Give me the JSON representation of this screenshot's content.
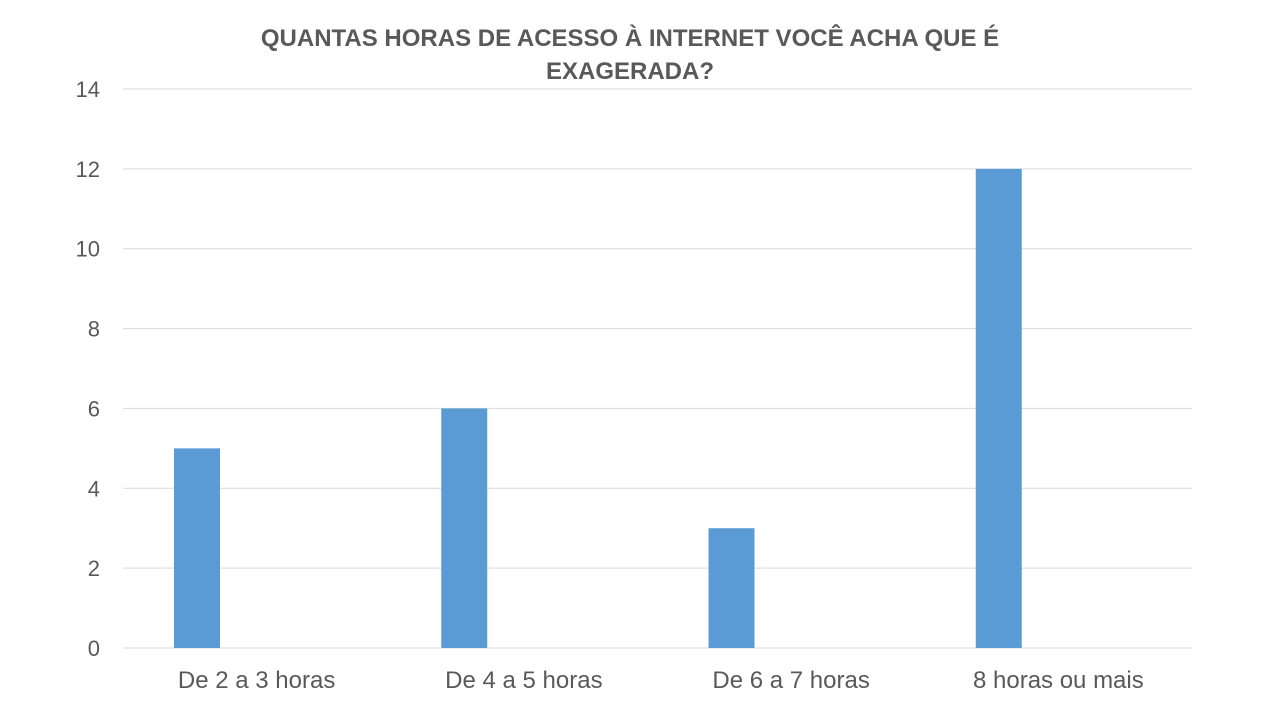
{
  "chart_data": {
    "type": "bar",
    "title": "QUANTAS HORAS DE ACESSO À INTERNET VOCÊ ACHA QUE É\nEXAGERADA?",
    "categories": [
      "De 2 a 3 horas",
      "De 4 a 5 horas",
      "De 6 a 7 horas",
      "8 horas ou mais"
    ],
    "series": [
      {
        "values": [
          5,
          6,
          3,
          12
        ]
      }
    ],
    "xlabel": "",
    "ylabel": "",
    "ylim": [
      0,
      14
    ],
    "yticks": [
      0,
      2,
      4,
      6,
      8,
      10,
      12,
      14
    ],
    "grid": true,
    "legend": "none",
    "colors": {
      "bar": "#5B9BD5",
      "grid": "#D9D9D9",
      "text": "#595959"
    }
  }
}
